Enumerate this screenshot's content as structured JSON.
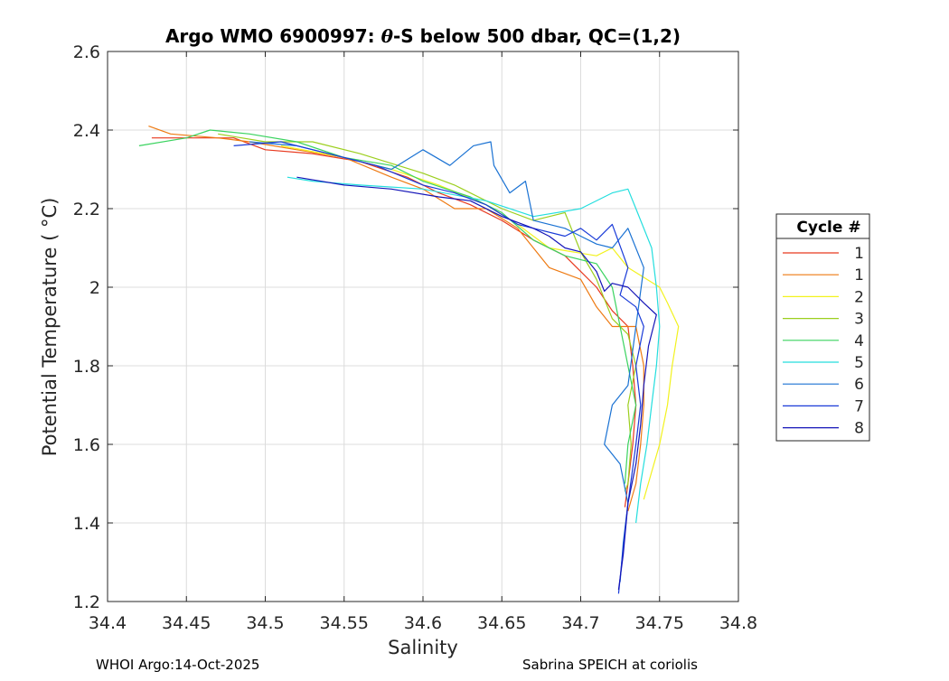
{
  "chart_data": {
    "type": "line",
    "title_prefix": "Argo WMO 6900997: ",
    "title_theta": "θ",
    "title_suffix": "-S below 500 dbar,  QC=(1,2)",
    "xlabel": "Salinity",
    "ylabel": "Potential Temperature ( °C)",
    "xlim": [
      34.4,
      34.8
    ],
    "ylim": [
      1.2,
      2.6
    ],
    "x_ticks": [
      34.4,
      34.45,
      34.5,
      34.55,
      34.6,
      34.65,
      34.7,
      34.75,
      34.8
    ],
    "x_tick_labels": [
      "34.4",
      "34.45",
      "34.5",
      "34.55",
      "34.6",
      "34.65",
      "34.7",
      "34.75",
      "34.8"
    ],
    "y_ticks": [
      1.2,
      1.4,
      1.6,
      1.8,
      2.0,
      2.2,
      2.4,
      2.6
    ],
    "y_tick_labels": [
      "1.2",
      "1.4",
      "1.6",
      "1.8",
      "2",
      "2.2",
      "2.4",
      "2.6"
    ],
    "grid": true,
    "legend_title": "Cycle #",
    "legend_location": "outside-right",
    "series": [
      {
        "name": "1",
        "color": "#e8391f",
        "points": [
          [
            34.428,
            2.38
          ],
          [
            34.46,
            2.38
          ],
          [
            34.48,
            2.38
          ],
          [
            34.5,
            2.35
          ],
          [
            34.53,
            2.34
          ],
          [
            34.56,
            2.32
          ],
          [
            34.59,
            2.28
          ],
          [
            34.61,
            2.24
          ],
          [
            34.63,
            2.21
          ],
          [
            34.65,
            2.17
          ],
          [
            34.67,
            2.12
          ],
          [
            34.69,
            2.08
          ],
          [
            34.7,
            2.04
          ],
          [
            34.71,
            2.0
          ],
          [
            34.72,
            1.94
          ],
          [
            34.73,
            1.9
          ],
          [
            34.733,
            1.8
          ],
          [
            34.735,
            1.7
          ],
          [
            34.733,
            1.6
          ],
          [
            34.73,
            1.5
          ],
          [
            34.728,
            1.44
          ]
        ]
      },
      {
        "name": "1",
        "color": "#ee7a12",
        "points": [
          [
            34.426,
            2.41
          ],
          [
            34.44,
            2.39
          ],
          [
            34.47,
            2.38
          ],
          [
            34.49,
            2.37
          ],
          [
            34.52,
            2.35
          ],
          [
            34.55,
            2.33
          ],
          [
            34.58,
            2.28
          ],
          [
            34.6,
            2.25
          ],
          [
            34.62,
            2.2
          ],
          [
            34.64,
            2.2
          ],
          [
            34.66,
            2.15
          ],
          [
            34.68,
            2.05
          ],
          [
            34.7,
            2.02
          ],
          [
            34.71,
            1.95
          ],
          [
            34.72,
            1.9
          ],
          [
            34.735,
            1.9
          ],
          [
            34.74,
            1.8
          ],
          [
            34.74,
            1.7
          ],
          [
            34.738,
            1.6
          ],
          [
            34.735,
            1.5
          ],
          [
            34.73,
            1.43
          ]
        ]
      },
      {
        "name": "2",
        "color": "#f2f21e",
        "points": [
          [
            34.51,
            2.36
          ],
          [
            34.55,
            2.33
          ],
          [
            34.58,
            2.3
          ],
          [
            34.61,
            2.26
          ],
          [
            34.64,
            2.21
          ],
          [
            34.66,
            2.16
          ],
          [
            34.68,
            2.1
          ],
          [
            34.71,
            2.08
          ],
          [
            34.72,
            2.1
          ],
          [
            34.73,
            2.05
          ],
          [
            34.75,
            2.0
          ],
          [
            34.755,
            1.96
          ],
          [
            34.762,
            1.9
          ],
          [
            34.758,
            1.8
          ],
          [
            34.755,
            1.7
          ],
          [
            34.75,
            1.6
          ],
          [
            34.745,
            1.53
          ],
          [
            34.74,
            1.46
          ]
        ]
      },
      {
        "name": "3",
        "color": "#9ccf1e",
        "points": [
          [
            34.47,
            2.39
          ],
          [
            34.5,
            2.37
          ],
          [
            34.53,
            2.37
          ],
          [
            34.56,
            2.34
          ],
          [
            34.6,
            2.29
          ],
          [
            34.62,
            2.26
          ],
          [
            34.65,
            2.2
          ],
          [
            34.67,
            2.17
          ],
          [
            34.69,
            2.19
          ],
          [
            34.7,
            2.09
          ],
          [
            34.71,
            2.02
          ],
          [
            34.72,
            1.92
          ],
          [
            34.73,
            1.88
          ],
          [
            34.735,
            1.8
          ],
          [
            34.73,
            1.7
          ],
          [
            34.732,
            1.6
          ],
          [
            34.73,
            1.5
          ],
          [
            34.728,
            1.48
          ]
        ]
      },
      {
        "name": "4",
        "color": "#3ad35f",
        "points": [
          [
            34.42,
            2.36
          ],
          [
            34.45,
            2.38
          ],
          [
            34.465,
            2.4
          ],
          [
            34.49,
            2.39
          ],
          [
            34.52,
            2.37
          ],
          [
            34.55,
            2.33
          ],
          [
            34.58,
            2.31
          ],
          [
            34.6,
            2.27
          ],
          [
            34.63,
            2.23
          ],
          [
            34.65,
            2.19
          ],
          [
            34.67,
            2.12
          ],
          [
            34.69,
            2.08
          ],
          [
            34.71,
            2.06
          ],
          [
            34.72,
            2.0
          ],
          [
            34.725,
            1.9
          ],
          [
            34.73,
            1.8
          ],
          [
            34.735,
            1.7
          ],
          [
            34.73,
            1.6
          ],
          [
            34.728,
            1.5
          ]
        ]
      },
      {
        "name": "5",
        "color": "#24dede",
        "points": [
          [
            34.514,
            2.28
          ],
          [
            34.53,
            2.27
          ],
          [
            34.56,
            2.26
          ],
          [
            34.6,
            2.25
          ],
          [
            34.64,
            2.22
          ],
          [
            34.67,
            2.18
          ],
          [
            34.7,
            2.2
          ],
          [
            34.72,
            2.24
          ],
          [
            34.73,
            2.25
          ],
          [
            34.735,
            2.2
          ],
          [
            34.745,
            2.1
          ],
          [
            34.748,
            2.0
          ],
          [
            34.75,
            1.9
          ],
          [
            34.748,
            1.8
          ],
          [
            34.745,
            1.7
          ],
          [
            34.742,
            1.6
          ],
          [
            34.738,
            1.5
          ],
          [
            34.735,
            1.4
          ]
        ]
      },
      {
        "name": "6",
        "color": "#1a72d3",
        "points": [
          [
            34.49,
            2.37
          ],
          [
            34.52,
            2.36
          ],
          [
            34.55,
            2.33
          ],
          [
            34.58,
            2.3
          ],
          [
            34.6,
            2.35
          ],
          [
            34.617,
            2.31
          ],
          [
            34.632,
            2.36
          ],
          [
            34.643,
            2.37
          ],
          [
            34.645,
            2.31
          ],
          [
            34.655,
            2.24
          ],
          [
            34.665,
            2.27
          ],
          [
            34.67,
            2.17
          ],
          [
            34.69,
            2.15
          ],
          [
            34.71,
            2.11
          ],
          [
            34.72,
            2.1
          ],
          [
            34.73,
            2.15
          ],
          [
            34.74,
            2.05
          ],
          [
            34.735,
            1.9
          ],
          [
            34.73,
            1.75
          ],
          [
            34.72,
            1.7
          ],
          [
            34.715,
            1.6
          ],
          [
            34.725,
            1.55
          ],
          [
            34.73,
            1.45
          ],
          [
            34.727,
            1.35
          ],
          [
            34.725,
            1.25
          ]
        ]
      },
      {
        "name": "7",
        "color": "#1a3bd8",
        "points": [
          [
            34.48,
            2.36
          ],
          [
            34.51,
            2.37
          ],
          [
            34.54,
            2.34
          ],
          [
            34.57,
            2.31
          ],
          [
            34.6,
            2.26
          ],
          [
            34.62,
            2.24
          ],
          [
            34.64,
            2.21
          ],
          [
            34.66,
            2.16
          ],
          [
            34.69,
            2.13
          ],
          [
            34.7,
            2.15
          ],
          [
            34.71,
            2.12
          ],
          [
            34.72,
            2.16
          ],
          [
            34.73,
            2.05
          ],
          [
            34.725,
            1.98
          ],
          [
            34.735,
            1.95
          ],
          [
            34.74,
            1.9
          ],
          [
            34.735,
            1.8
          ],
          [
            34.738,
            1.7
          ],
          [
            34.735,
            1.6
          ],
          [
            34.73,
            1.45
          ],
          [
            34.726,
            1.3
          ],
          [
            34.724,
            1.22
          ]
        ]
      },
      {
        "name": "8",
        "color": "#1515b8",
        "points": [
          [
            34.52,
            2.28
          ],
          [
            34.55,
            2.26
          ],
          [
            34.58,
            2.25
          ],
          [
            34.61,
            2.23
          ],
          [
            34.63,
            2.22
          ],
          [
            34.65,
            2.18
          ],
          [
            34.67,
            2.15
          ],
          [
            34.68,
            2.13
          ],
          [
            34.69,
            2.1
          ],
          [
            34.7,
            2.09
          ],
          [
            34.71,
            2.04
          ],
          [
            34.715,
            1.99
          ],
          [
            34.72,
            2.01
          ],
          [
            34.73,
            2.0
          ],
          [
            34.74,
            1.96
          ],
          [
            34.748,
            1.93
          ],
          [
            34.743,
            1.85
          ],
          [
            34.74,
            1.75
          ],
          [
            34.738,
            1.65
          ],
          [
            34.735,
            1.55
          ],
          [
            34.73,
            1.45
          ],
          [
            34.727,
            1.32
          ],
          [
            34.724,
            1.23
          ]
        ]
      }
    ]
  },
  "footer": {
    "left": "WHOI Argo:14-Oct-2025",
    "right": "Sabrina SPEICH at coriolis"
  }
}
